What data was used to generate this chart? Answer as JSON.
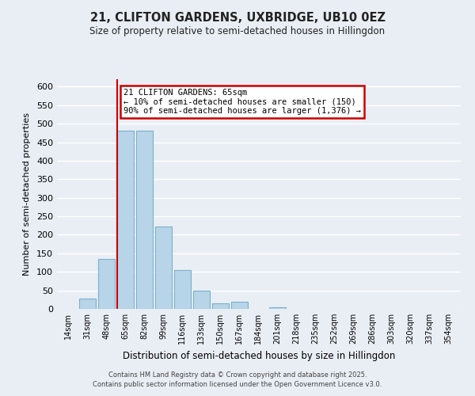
{
  "title": "21, CLIFTON GARDENS, UXBRIDGE, UB10 0EZ",
  "subtitle": "Size of property relative to semi-detached houses in Hillingdon",
  "xlabel": "Distribution of semi-detached houses by size in Hillingdon",
  "ylabel": "Number of semi-detached properties",
  "bar_labels": [
    "14sqm",
    "31sqm",
    "48sqm",
    "65sqm",
    "82sqm",
    "99sqm",
    "116sqm",
    "133sqm",
    "150sqm",
    "167sqm",
    "184sqm",
    "201sqm",
    "218sqm",
    "235sqm",
    "252sqm",
    "269sqm",
    "286sqm",
    "303sqm",
    "320sqm",
    "337sqm",
    "354sqm"
  ],
  "bar_values": [
    0,
    27,
    135,
    480,
    480,
    222,
    105,
    50,
    16,
    20,
    0,
    5,
    0,
    0,
    0,
    0,
    0,
    0,
    0,
    0,
    0
  ],
  "bar_color": "#b8d4e8",
  "bar_edge_color": "#7ab0cc",
  "highlight_bar_index": 3,
  "vline_color": "#cc0000",
  "annotation_title": "21 CLIFTON GARDENS: 65sqm",
  "annotation_line1": "← 10% of semi-detached houses are smaller (150)",
  "annotation_line2": "90% of semi-detached houses are larger (1,376) →",
  "annotation_box_color": "#ffffff",
  "annotation_box_edge": "#cc0000",
  "ylim": [
    0,
    620
  ],
  "yticks": [
    0,
    50,
    100,
    150,
    200,
    250,
    300,
    350,
    400,
    450,
    500,
    550,
    600
  ],
  "background_color": "#e8eef4",
  "grid_color": "#ffffff",
  "footer1": "Contains HM Land Registry data © Crown copyright and database right 2025.",
  "footer2": "Contains public sector information licensed under the Open Government Licence v3.0."
}
